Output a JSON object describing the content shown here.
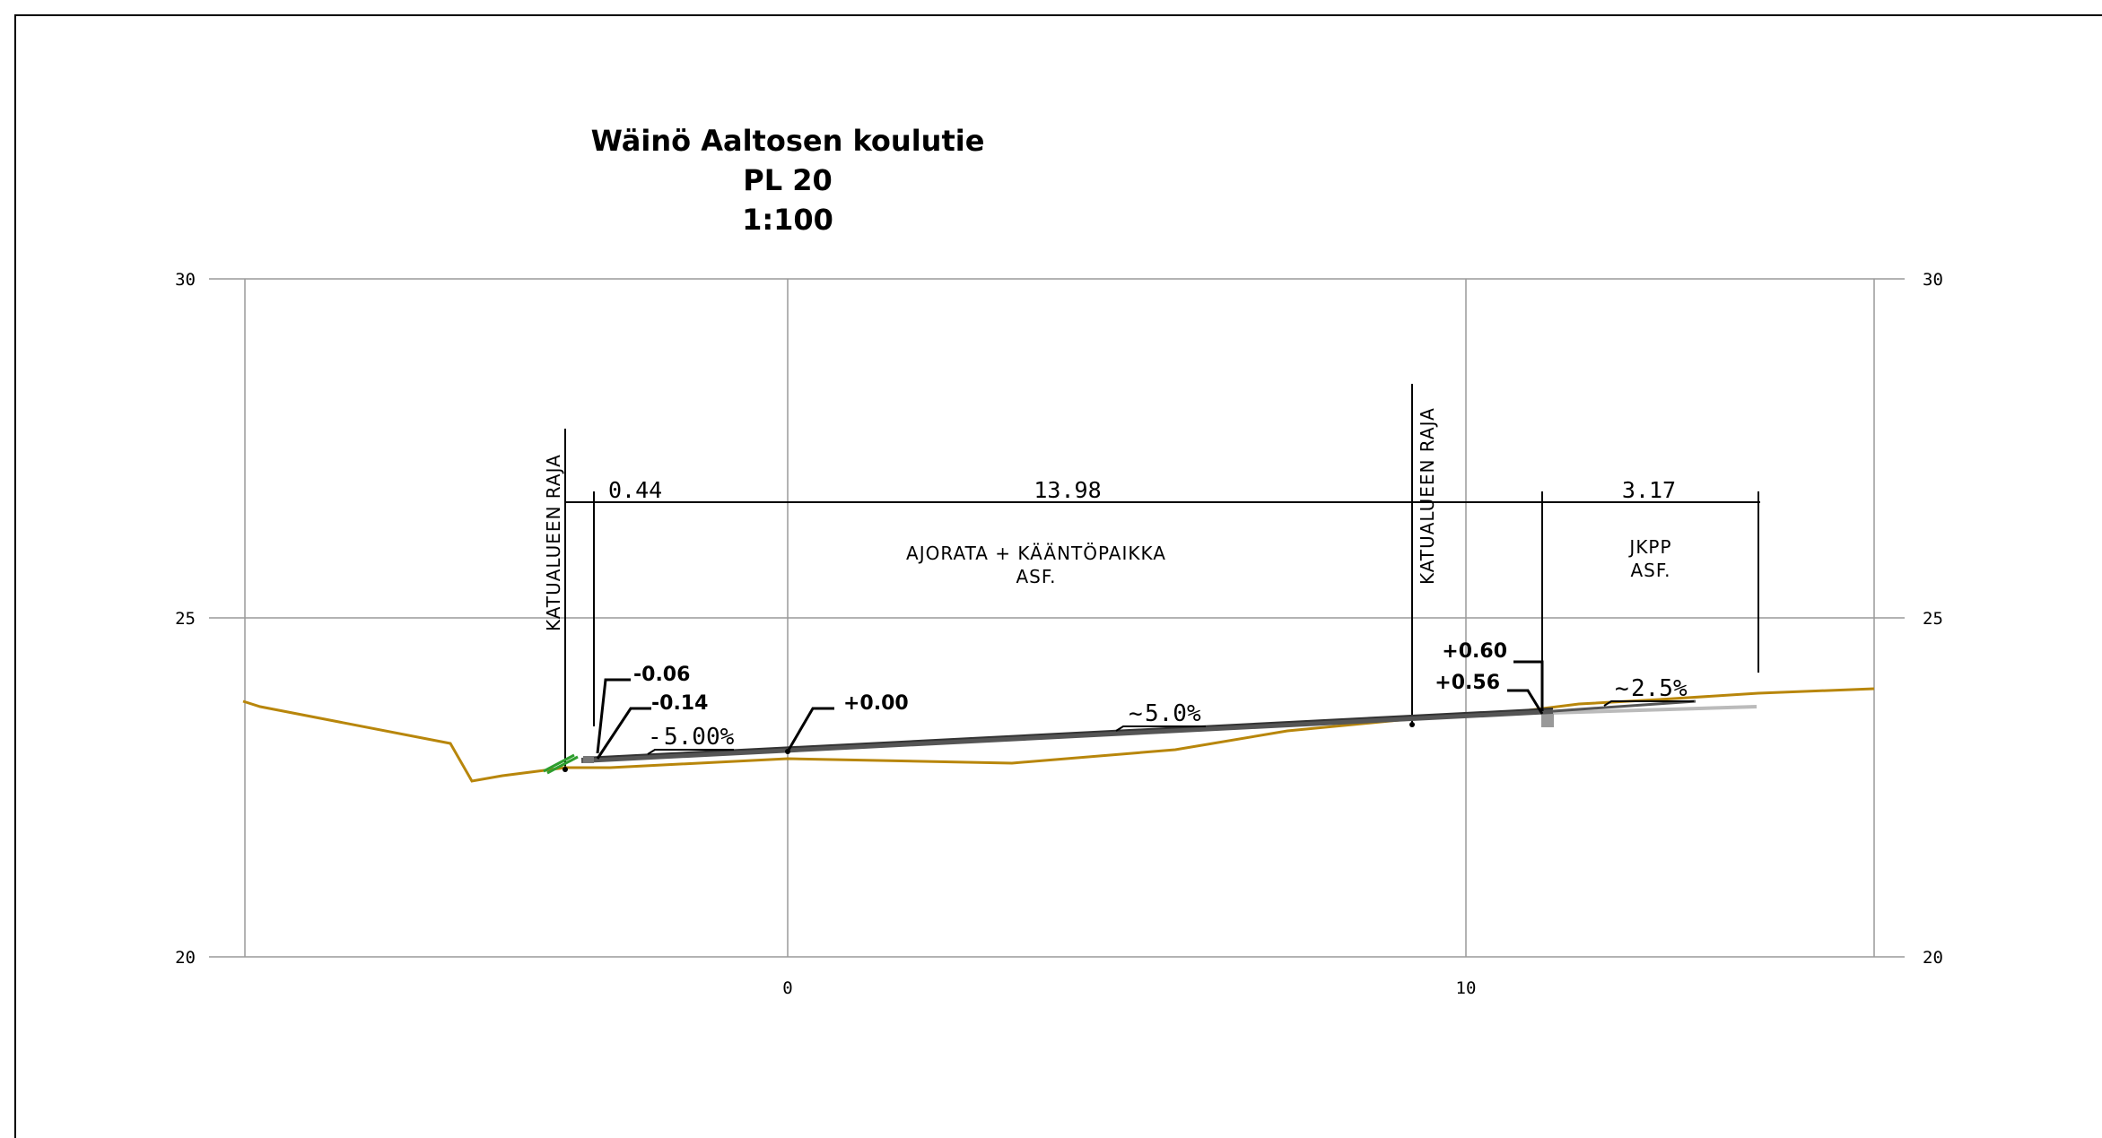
{
  "title": {
    "line1": "Wäinö Aaltosen koulutie",
    "line2": "PL 20",
    "line3": "1:100"
  },
  "axes": {
    "y_ticks_left": [
      "30",
      "25",
      "20"
    ],
    "y_ticks_right": [
      "30",
      "25",
      "20"
    ],
    "x_ticks": [
      "0",
      "10"
    ]
  },
  "boundaries": {
    "left_label": "KATUALUEEN RAJA",
    "right_label": "KATUALUEEN RAJA"
  },
  "dimensions": {
    "d1": "0.44",
    "d2": "13.98",
    "d3": "3.17"
  },
  "zones": {
    "road_line1": "AJORATA + KÄÄNTÖPAIKKA",
    "road_line2": "ASF.",
    "path_line1": "JKPP",
    "path_line2": "ASF."
  },
  "heights": {
    "h_left_top": "-0.06",
    "h_left_bottom": "-0.14",
    "h_center": "+0.00",
    "h_right_top": "+0.60",
    "h_right_bottom": "+0.56"
  },
  "slopes": {
    "s_left": "5.00%",
    "s_road": "5.0%",
    "s_path": "2.5%"
  },
  "colors": {
    "ground": "#b8860b",
    "road": "#555555",
    "grid": "#9a9a9a",
    "path": "#bbbbbb",
    "kerb": "#2e9e2e"
  }
}
